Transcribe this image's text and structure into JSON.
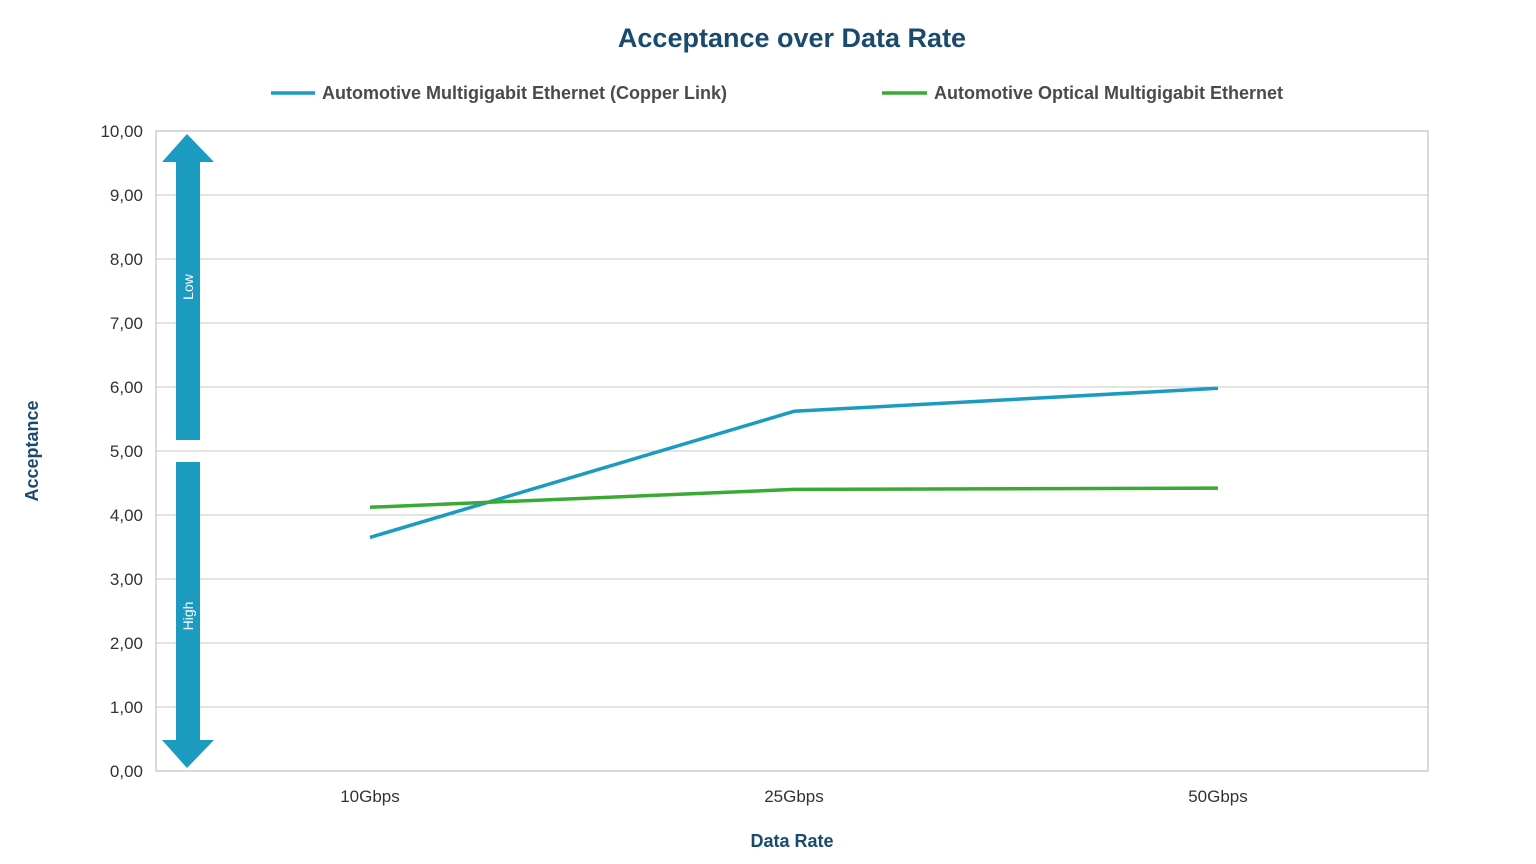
{
  "colors": {
    "title": "#1a4a6e",
    "copper_series": "#1a9bbf",
    "optical_series": "#3aaa35",
    "arrow": "#1a9bbf",
    "grid": "#c8c8c8",
    "axis_border": "#b4b4b4"
  },
  "chart_data": {
    "type": "line",
    "title": "Acceptance over Data Rate",
    "xlabel": "Data Rate",
    "ylabel": "Acceptance",
    "categories": [
      "10Gbps",
      "25Gbps",
      "50Gbps"
    ],
    "ylim": [
      0,
      10
    ],
    "yticks": [
      "0,00",
      "1,00",
      "2,00",
      "3,00",
      "4,00",
      "5,00",
      "6,00",
      "7,00",
      "8,00",
      "9,00",
      "10,00"
    ],
    "grid": true,
    "legend_position": "top",
    "series": [
      {
        "name": "Automotive Multigigabit Ethernet (Copper Link)",
        "values": [
          3.65,
          5.62,
          5.98
        ]
      },
      {
        "name": "Automotive Optical Multigigabit Ethernet",
        "values": [
          4.12,
          4.4,
          4.42
        ]
      }
    ],
    "annotations": {
      "arrow_top_label": "Low",
      "arrow_bottom_label": "High"
    }
  }
}
